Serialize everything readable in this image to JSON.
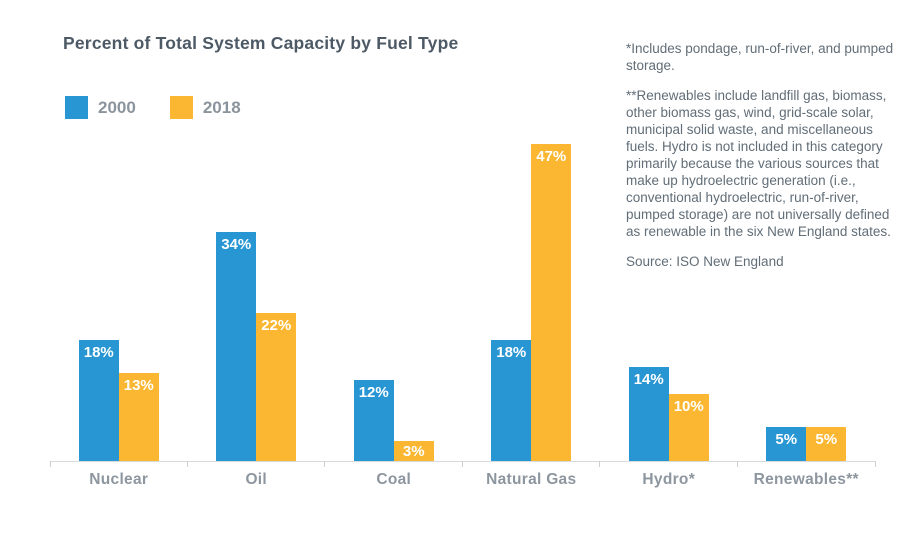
{
  "header": {
    "title": "Percent of Total System Capacity by Fuel Type"
  },
  "legend": {
    "items": [
      {
        "label": "2000",
        "color": "#2896D3"
      },
      {
        "label": "2018",
        "color": "#FBB731"
      }
    ]
  },
  "notes": {
    "footnote_hydro": "*Includes pondage, run-of-river, and pumped storage.",
    "footnote_renewables": "**Renewables include landfill gas, biomass, other biomass gas, wind, grid-scale solar, municipal solid waste, and miscellaneous fuels. Hydro is not included in this category primarily because the various sources that make up hydroelectric generation (i.e., conventional hydroelectric, run-of-river, pumped storage) are not universally defined as renewable in the six New England states.",
    "source": "Source: ISO New England"
  },
  "chart_data": {
    "type": "bar",
    "title": "Percent of Total System Capacity by Fuel Type",
    "categories": [
      "Nuclear",
      "Oil",
      "Coal",
      "Natural Gas",
      "Hydro*",
      "Renewables**"
    ],
    "series": [
      {
        "name": "2000",
        "color": "#2896D3",
        "values": [
          18,
          34,
          12,
          18,
          14,
          5
        ],
        "labels": [
          "18%",
          "34%",
          "12%",
          "18%",
          "14%",
          "5%"
        ]
      },
      {
        "name": "2018",
        "color": "#FBB731",
        "values": [
          13,
          22,
          3,
          47,
          10,
          5
        ],
        "labels": [
          "13%",
          "22%",
          "3%",
          "47%",
          "10%",
          "5%"
        ]
      }
    ],
    "xlabel": "",
    "ylabel": "",
    "ylim": [
      0,
      48
    ],
    "grid": false,
    "y_axis_shown": false,
    "legend_position": "top-left",
    "value_label_color": "#FFFFFF",
    "axis_color": "#D8DBDE",
    "tick_color": "#CBCFD3",
    "category_label_color": "#8D969F"
  }
}
